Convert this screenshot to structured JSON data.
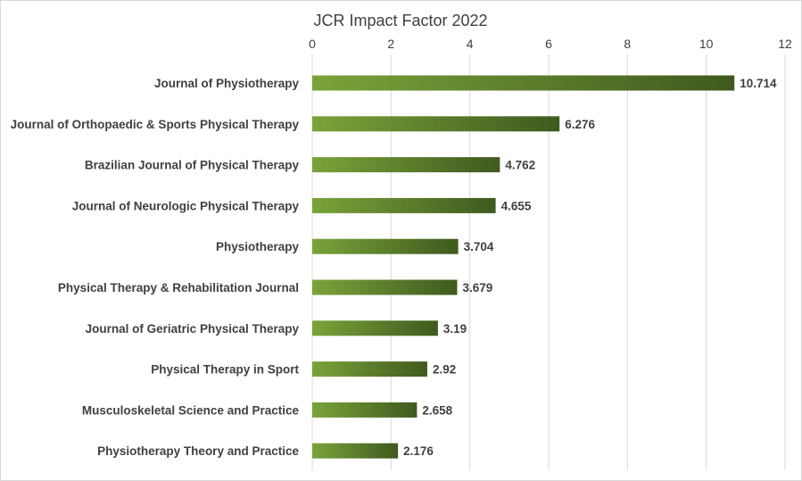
{
  "chart_data": {
    "type": "bar",
    "orientation": "horizontal",
    "title": "JCR Impact Factor 2022",
    "xlabel": "",
    "ylabel": "",
    "categories": [
      "Journal of Physiotherapy",
      "Journal of Orthopaedic & Sports Physical Therapy",
      "Brazilian Journal of Physical Therapy",
      "Journal of Neurologic Physical Therapy",
      "Physiotherapy",
      "Physical Therapy & Rehabilitation Journal",
      "Journal of Geriatric Physical Therapy",
      "Physical Therapy in Sport",
      "Musculoskeletal Science and Practice",
      "Physiotherapy Theory and Practice"
    ],
    "values": [
      10.714,
      6.276,
      4.762,
      4.655,
      3.704,
      3.679,
      3.19,
      2.92,
      2.658,
      2.176
    ],
    "value_labels": [
      "10.714",
      "6.276",
      "4.762",
      "4.655",
      "3.704",
      "3.679",
      "3.19",
      "2.92",
      "2.658",
      "2.176"
    ],
    "xlim": [
      0,
      12
    ],
    "xticks": [
      0,
      2,
      4,
      6,
      8,
      10,
      12
    ],
    "xtick_labels": [
      "0",
      "2",
      "4",
      "6",
      "8",
      "10",
      "12"
    ],
    "axis_position": "top",
    "grid": true,
    "legend": "none",
    "colors": {
      "bar_gradient_start": "#7aa33a",
      "bar_gradient_end": "#3f5a1e",
      "grid": "#d9d9d9",
      "text": "#404040"
    }
  }
}
